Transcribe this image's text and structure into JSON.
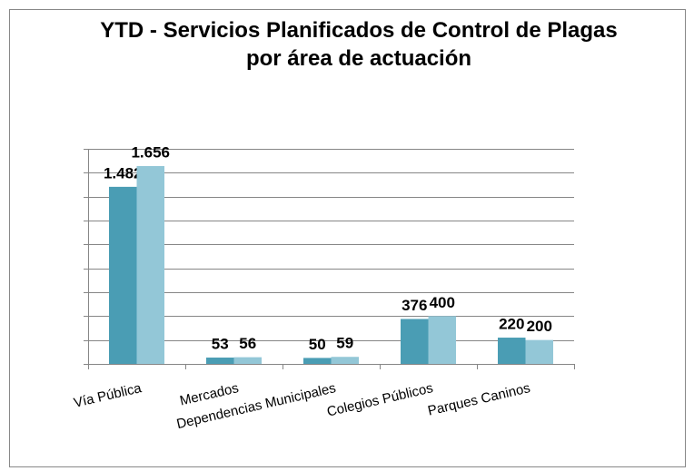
{
  "chart_data": {
    "type": "bar",
    "title": "YTD - Servicios Planificados de Control de Plagas",
    "subtitle": "por área de actuación",
    "categories": [
      "Vía Pública",
      "Mercados",
      "Dependencias Municipales",
      "Colegios Públicos",
      "Parques Caninos"
    ],
    "series": [
      {
        "color": "#4a9db4",
        "values": [
          1482,
          53,
          50,
          376,
          220
        ],
        "value_labels": [
          "1.482",
          "53",
          "50",
          "376",
          "220"
        ]
      },
      {
        "color": "#93c7d7",
        "values": [
          1656,
          56,
          59,
          400,
          200
        ],
        "value_labels": [
          "1.656",
          "56",
          "59",
          "400",
          "200"
        ]
      }
    ],
    "ylim": [
      0,
      1800
    ],
    "yticks": [
      0,
      200,
      400,
      600,
      800,
      1000,
      1200,
      1400,
      1600,
      1800
    ],
    "grid": true
  }
}
